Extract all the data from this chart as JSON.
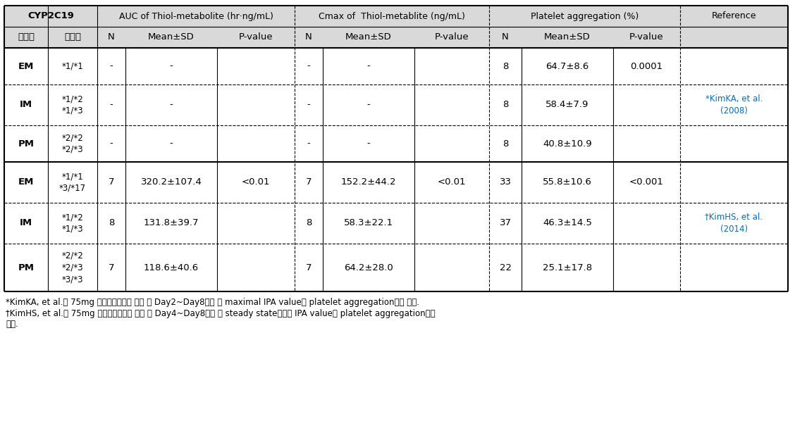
{
  "header1": {
    "cyp2c19": "CYP2C19",
    "auc": "AUC of Thiol-metabolite (hr·ng/mL)",
    "cmax": "Cmax of  Thiol-metablite (ng/mL)",
    "platelet": "Platelet aggregation (%)",
    "reference": "Reference"
  },
  "header2": {
    "phenotype": "표현형",
    "genotype": "유전형",
    "n": "N",
    "mean_sd": "Mean±SD",
    "p_value": "P-value"
  },
  "rows": [
    {
      "group": 1,
      "phenotype": "EM",
      "genotype": "*1/*1",
      "n_auc": "-",
      "mean_auc": "-",
      "pval_auc": "",
      "n_cmax": "-",
      "mean_cmax": "-",
      "pval_cmax": "",
      "n_plat": "8",
      "mean_plat": "64.7±8.6",
      "pval_plat": "0.0001",
      "ref": ""
    },
    {
      "group": 1,
      "phenotype": "IM",
      "genotype": "*1/*2\n*1/*3",
      "n_auc": "-",
      "mean_auc": "-",
      "pval_auc": "",
      "n_cmax": "-",
      "mean_cmax": "-",
      "pval_cmax": "",
      "n_plat": "8",
      "mean_plat": "58.4±7.9",
      "pval_plat": "",
      "ref": "*KimKA, et al.\n(2008)"
    },
    {
      "group": 1,
      "phenotype": "PM",
      "genotype": "*2/*2\n*2/*3",
      "n_auc": "-",
      "mean_auc": "-",
      "pval_auc": "",
      "n_cmax": "-",
      "mean_cmax": "-",
      "pval_cmax": "",
      "n_plat": "8",
      "mean_plat": "40.8±10.9",
      "pval_plat": "",
      "ref": ""
    },
    {
      "group": 2,
      "phenotype": "EM",
      "genotype": "*1/*1\n*3/*17",
      "n_auc": "7",
      "mean_auc": "320.2±107.4",
      "pval_auc": "<0.01",
      "n_cmax": "7",
      "mean_cmax": "152.2±44.2",
      "pval_cmax": "<0.01",
      "n_plat": "33",
      "mean_plat": "55.8±10.6",
      "pval_plat": "<0.001",
      "ref": ""
    },
    {
      "group": 2,
      "phenotype": "IM",
      "genotype": "*1/*2\n*1/*3",
      "n_auc": "8",
      "mean_auc": "131.8±39.7",
      "pval_auc": "",
      "n_cmax": "8",
      "mean_cmax": "58.3±22.1",
      "pval_cmax": "",
      "n_plat": "37",
      "mean_plat": "46.3±14.5",
      "pval_plat": "",
      "ref": "†KimHS, et al.\n(2014)"
    },
    {
      "group": 2,
      "phenotype": "PM",
      "genotype": "*2/*2\n*2/*3\n*3/*3",
      "n_auc": "7",
      "mean_auc": "118.6±40.6",
      "pval_auc": "",
      "n_cmax": "7",
      "mean_cmax": "64.2±28.0",
      "pval_cmax": "",
      "n_plat": "22",
      "mean_plat": "25.1±17.8",
      "pval_plat": "",
      "ref": ""
    }
  ],
  "footnote1": "*KimKA, et al.은 75mg 클로피도그렘을 복용 후 Day2~Day8까지 중 maximal IPA value로 platelet aggregation값을 제시.",
  "footnote2": "†KimHS, et al.은 75mg 클로피도그레을 복용 후 Day4~Day8까지 중 steady state에서의 IPA value로 platelet aggregation값을",
  "footnote3": "제시.",
  "header_bg": "#d9d9d9",
  "ref_color": "#0070c0",
  "lw_outer": 1.5,
  "lw_inner": 0.8,
  "fs_header": 9.5,
  "fs_data": 9.5,
  "fs_footnote": 8.5
}
